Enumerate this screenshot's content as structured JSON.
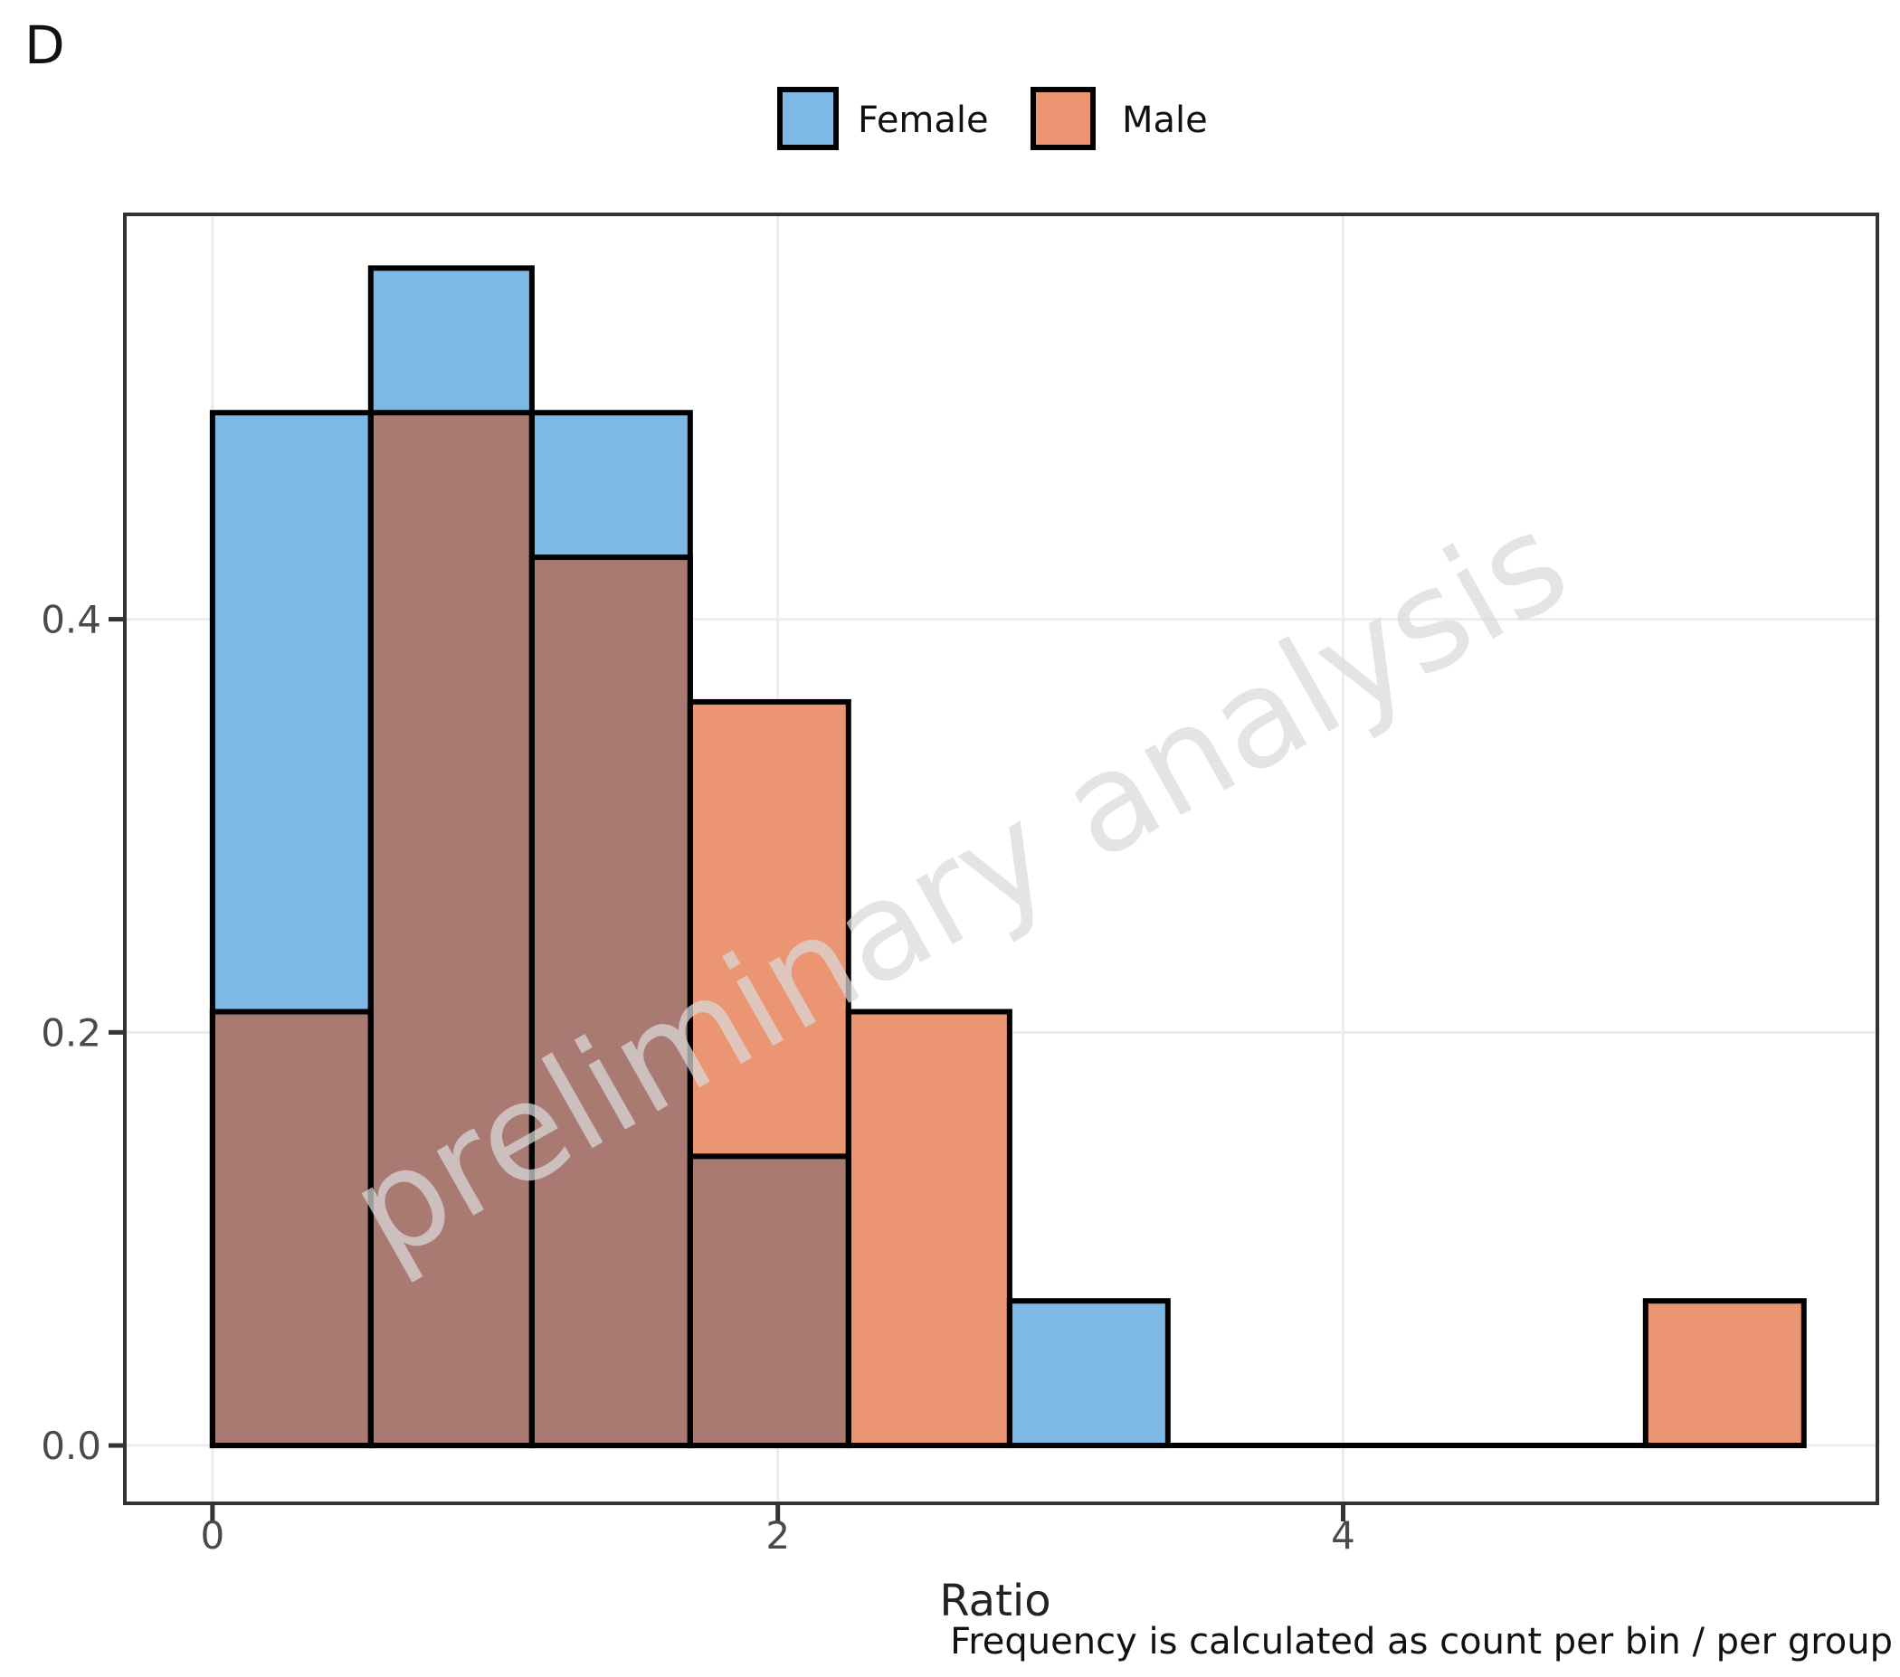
{
  "figure_label": "D",
  "legend": {
    "items": [
      {
        "label": "Female",
        "color": "#7EB9E6"
      },
      {
        "label": "Male",
        "color": "#EB9572"
      }
    ]
  },
  "watermark_text": "preliminary analysis",
  "x_axis": {
    "label": "Ratio",
    "ticks": [
      {
        "value": 0,
        "label": "0"
      },
      {
        "value": 2,
        "label": "2"
      },
      {
        "value": 4,
        "label": "4"
      }
    ]
  },
  "y_axis": {
    "ticks": [
      {
        "value": 0.0,
        "label": "0.0"
      },
      {
        "value": 0.2,
        "label": "0.2"
      },
      {
        "value": 0.4,
        "label": "0.4"
      }
    ]
  },
  "caption": "Frequency is calculated as count per bin / per group",
  "chart_data": {
    "type": "histogram",
    "position": "identity-overlay",
    "title": "",
    "xlabel": "Ratio",
    "ylabel": "",
    "bin_edges": [
      0,
      0.56,
      1.13,
      1.69,
      2.25,
      2.82,
      3.38,
      3.94,
      4.5,
      5.07,
      5.63
    ],
    "series": [
      {
        "name": "Female",
        "color": "#7EB9E6",
        "values": [
          0.5,
          0.57,
          0.5,
          0.14,
          0,
          0.07,
          0,
          0,
          0,
          0
        ]
      },
      {
        "name": "Male",
        "color": "#EB9572",
        "values": [
          0.21,
          0.5,
          0.43,
          0.36,
          0.21,
          0,
          0,
          0,
          0,
          0.07
        ]
      }
    ],
    "overlap_color": "#A87A72",
    "x_range": [
      -0.31,
      5.89
    ],
    "y_range": [
      -0.028,
      0.596
    ],
    "grid": "major-only",
    "legend_position": "top-center"
  }
}
